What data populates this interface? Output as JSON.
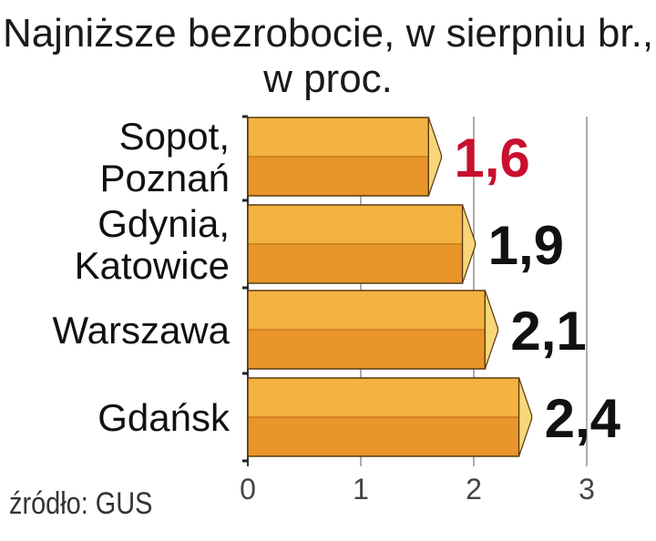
{
  "title": {
    "line1": "Najniższe bezrobocie, w sierpniu br.,",
    "line2": "w proc."
  },
  "source": "źródło: GUS",
  "colors": {
    "bar_top": "#F3B340",
    "bar_bottom": "#E8952A",
    "bar_end": "#F8D67A",
    "highlight_value": "#C8102E",
    "value": "#111111",
    "grid": "#777777"
  },
  "chart_data": {
    "type": "bar",
    "orientation": "horizontal",
    "categories": [
      [
        "Sopot,",
        "Poznań"
      ],
      [
        "Gdynia,",
        "Katowice"
      ],
      [
        "Warszawa"
      ],
      [
        "Gdańsk"
      ]
    ],
    "values": [
      1.6,
      1.9,
      2.1,
      2.4
    ],
    "value_labels": [
      "1,6",
      "1,9",
      "2,1",
      "2,4"
    ],
    "highlighted": [
      true,
      false,
      false,
      false
    ],
    "x_ticks": [
      0,
      1,
      2,
      3
    ],
    "x_tick_labels": [
      "0",
      "1",
      "2",
      "3"
    ],
    "xlim": [
      0,
      3
    ],
    "grid": true,
    "xlabel": "",
    "ylabel": ""
  }
}
